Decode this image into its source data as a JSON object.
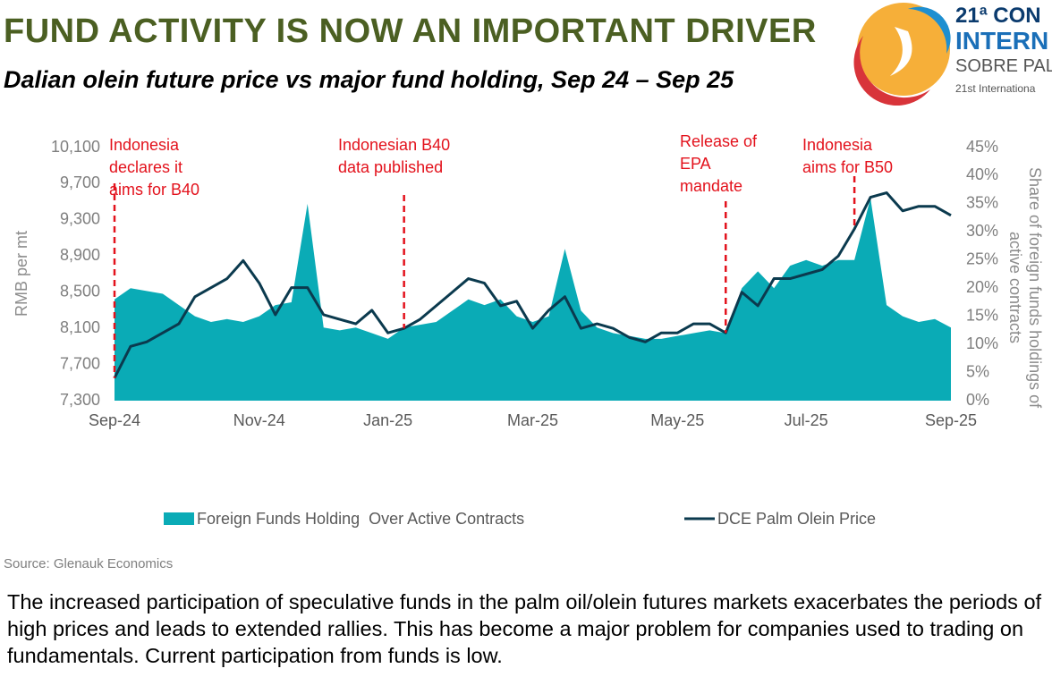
{
  "header": {
    "title": "FUND ACTIVITY IS NOW AN IMPORTANT DRIVER",
    "subtitle": "Dalian olein future price vs major fund holding, Sep 24 – Sep 25",
    "logo": {
      "line1": "21ª CON",
      "line2": "INTERN",
      "line3": "SOBRE PAL",
      "line4": "21st Internationa"
    }
  },
  "chart_data": {
    "type": "combo",
    "y_label": "RMB per mt",
    "y2_label": "Share of foreign funds holdings of active contracts",
    "categories": [
      "Sep-24",
      null,
      null,
      null,
      null,
      null,
      null,
      null,
      null,
      "Nov-24",
      null,
      null,
      null,
      null,
      null,
      null,
      null,
      "Jan-25",
      null,
      null,
      null,
      null,
      null,
      null,
      null,
      null,
      "Mar-25",
      null,
      null,
      null,
      null,
      null,
      null,
      null,
      null,
      "May-25",
      null,
      null,
      null,
      null,
      null,
      null,
      null,
      "Jul-25",
      null,
      null,
      null,
      null,
      null,
      null,
      null,
      null,
      "Sep-25"
    ],
    "series": [
      {
        "name": "Foreign Funds Holding  Over Active Contracts",
        "type": "area",
        "axis": "y2",
        "color": "#0aabb6",
        "values": [
          18,
          20,
          19.5,
          19,
          17,
          15,
          14,
          14.5,
          14,
          15,
          17,
          17.5,
          35,
          13,
          12.5,
          13,
          12,
          11,
          13,
          13.5,
          14,
          16,
          18,
          17,
          18,
          15,
          14,
          15,
          27,
          16,
          13,
          12,
          11.5,
          11,
          11,
          11.5,
          12,
          12.5,
          12,
          20,
          23,
          20,
          24,
          25,
          24,
          25,
          25,
          36,
          17,
          15,
          14,
          14.5,
          13
        ]
      },
      {
        "name": "DCE Palm Olein Price",
        "type": "line",
        "color": "#0b3a4e",
        "values": [
          7550,
          7900,
          7950,
          8050,
          8150,
          8450,
          8550,
          8650,
          8850,
          8600,
          8250,
          8550,
          8550,
          8250,
          8200,
          8150,
          8300,
          8050,
          8100,
          8200,
          8350,
          8500,
          8650,
          8600,
          8350,
          8400,
          8100,
          8300,
          8450,
          8100,
          8150,
          8100,
          8000,
          7950,
          8050,
          8050,
          8150,
          8150,
          8050,
          8500,
          8350,
          8650,
          8650,
          8700,
          8750,
          8900,
          9200,
          9550,
          9600,
          9400,
          9450,
          9450,
          9350
        ]
      }
    ],
    "ylim": [
      7300,
      10100
    ],
    "yticks": [
      {
        "value": 7300,
        "label": "7,300"
      },
      {
        "value": 7700,
        "label": "7,700"
      },
      {
        "value": 8100,
        "label": "8,100"
      },
      {
        "value": 8500,
        "label": "8,500"
      },
      {
        "value": 8900,
        "label": "8,900"
      },
      {
        "value": 9300,
        "label": "9,300"
      },
      {
        "value": 9700,
        "label": "9,700"
      },
      {
        "value": 10100,
        "label": "10,100"
      }
    ],
    "y2lim": [
      0,
      45
    ],
    "y2ticks": [
      {
        "value": 0,
        "label": "0%"
      },
      {
        "value": 5,
        "label": "5%"
      },
      {
        "value": 10,
        "label": "10%"
      },
      {
        "value": 15,
        "label": "15%"
      },
      {
        "value": 20,
        "label": "20%"
      },
      {
        "value": 25,
        "label": "25%"
      },
      {
        "value": 30,
        "label": "30%"
      },
      {
        "value": 35,
        "label": "35%"
      },
      {
        "value": 40,
        "label": "40%"
      },
      {
        "value": 45,
        "label": "45%"
      }
    ],
    "annotations": [
      "Indonesia declares it aims for B40",
      "Indonesian B40 data published",
      "Release of EPA mandate",
      "Indonesia aims for B50"
    ],
    "annotation_color": "#e3121c",
    "legend": "bottom"
  },
  "source": "Source: Glenauk Economics",
  "body": "The increased participation of speculative funds in the palm oil/olein futures markets exacerbates the periods of high prices and leads to extended rallies. This has become a major problem for companies used to trading on fundamentals.  Current participation from funds is low."
}
